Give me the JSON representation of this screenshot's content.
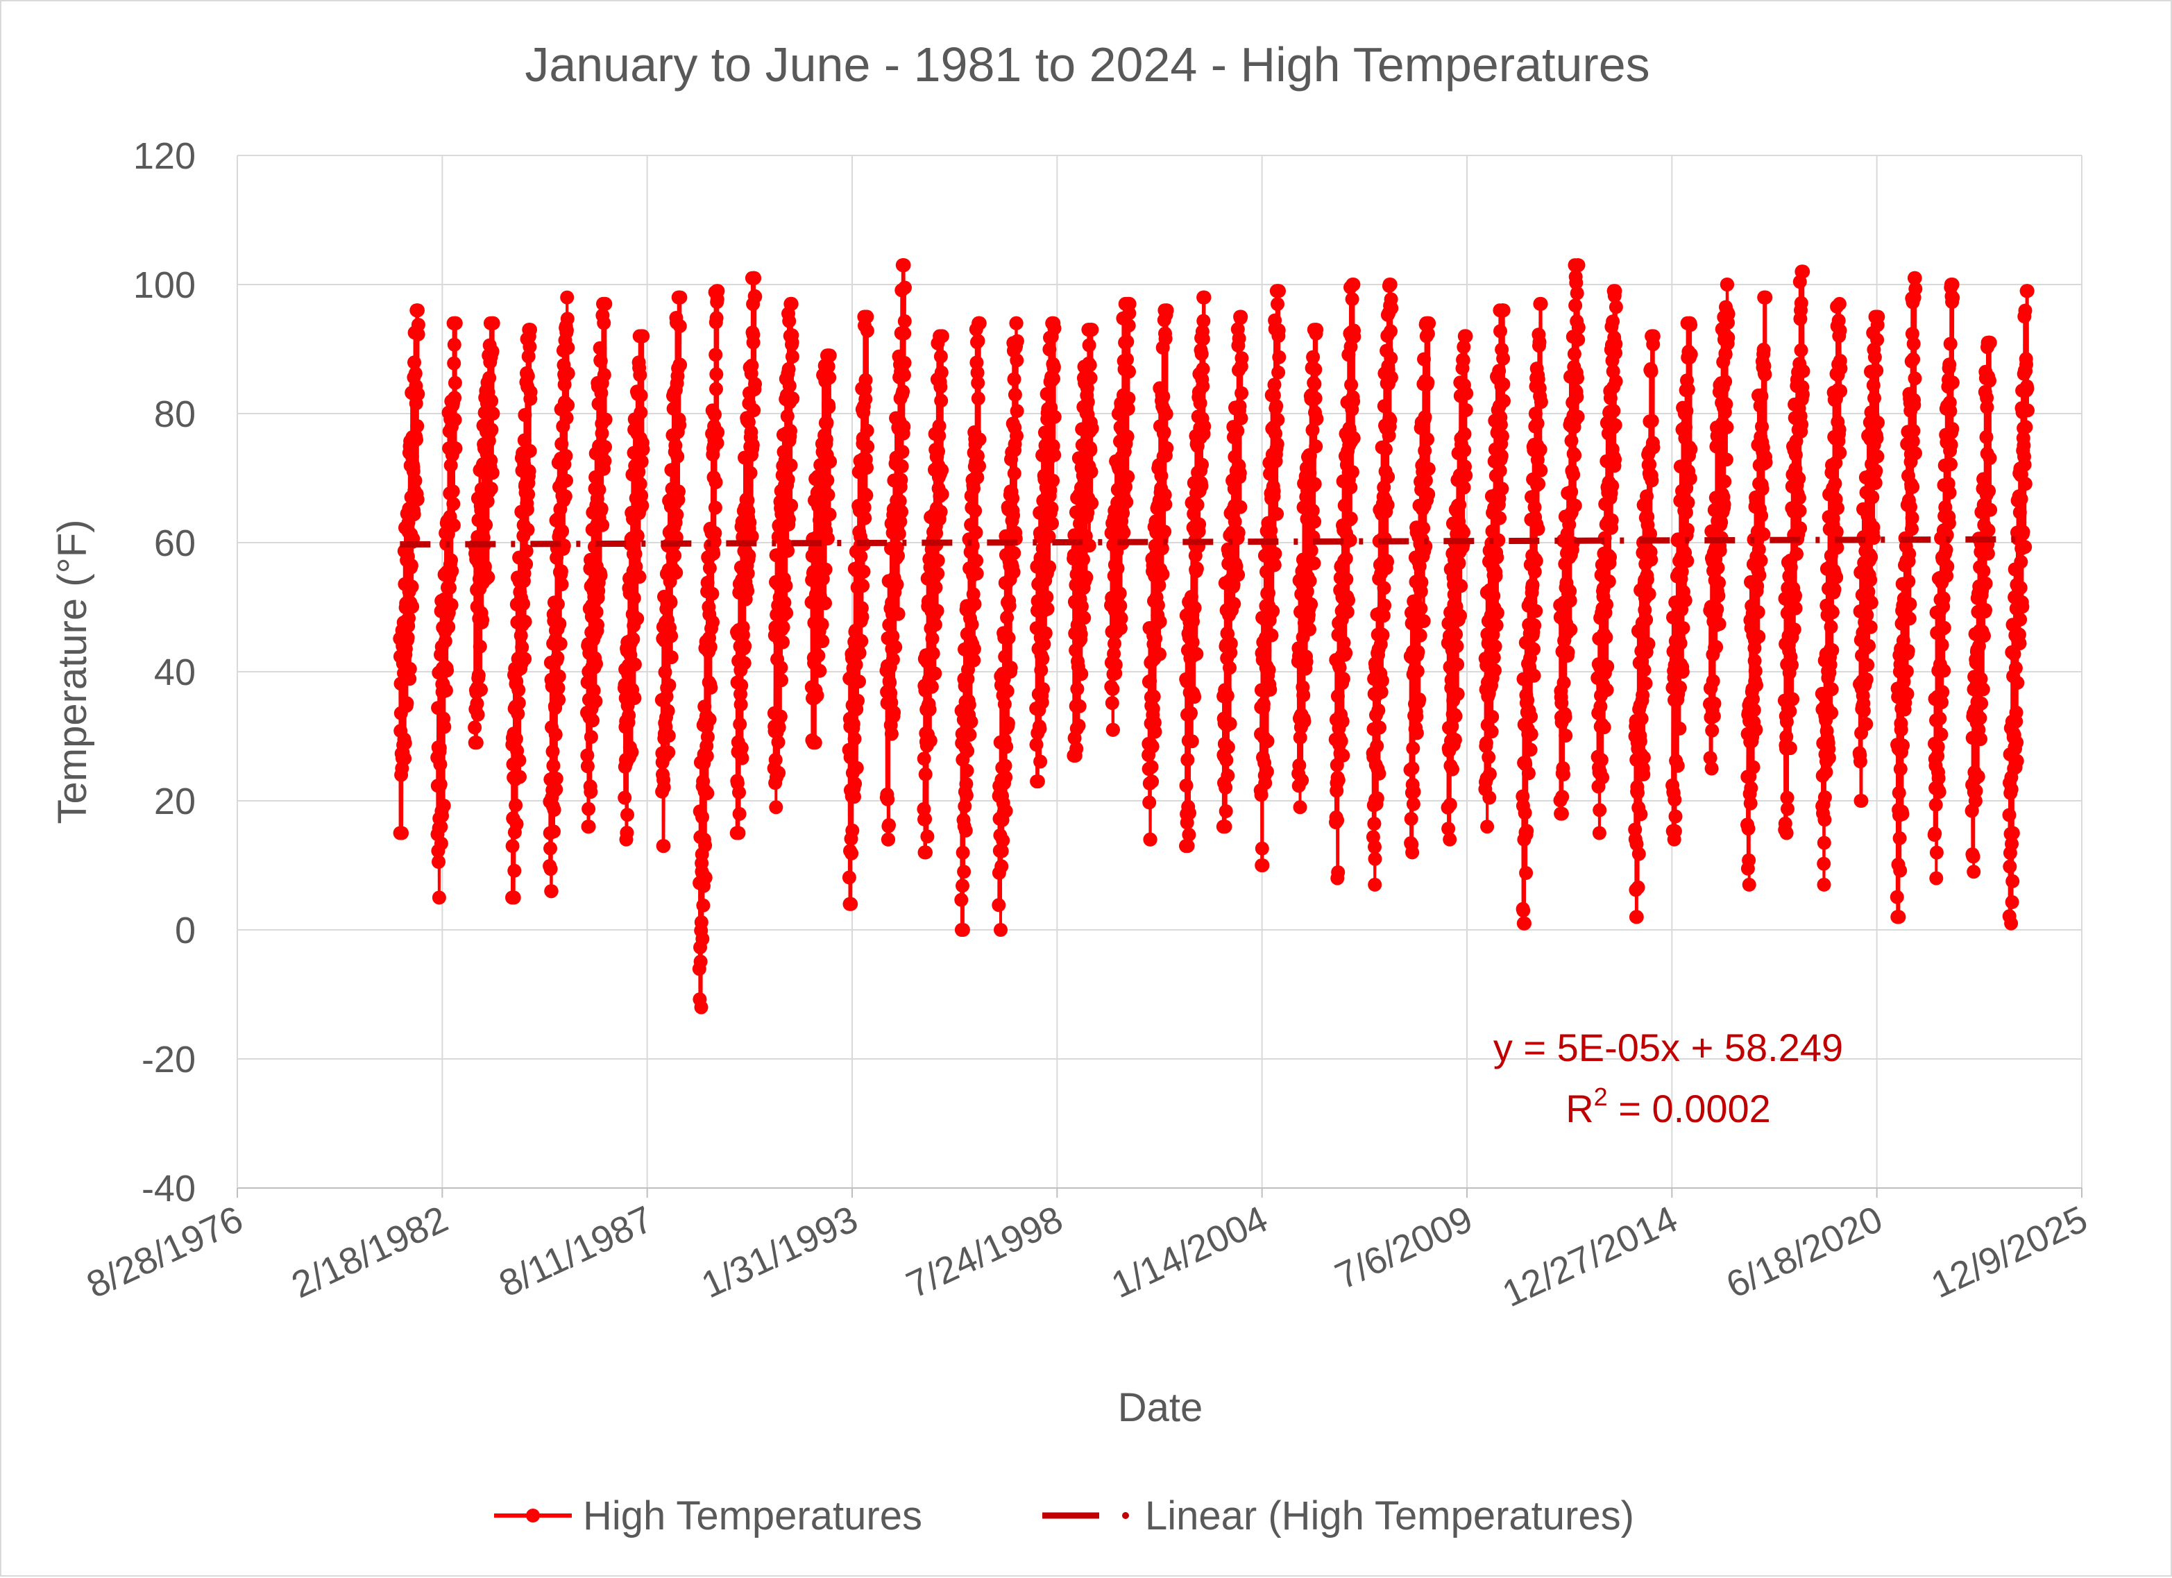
{
  "chart_data": {
    "type": "line",
    "title": "January to June - 1981 to 2024 - High Temperatures",
    "xlabel": "Date",
    "ylabel": "Temperature (°F)",
    "ylim": [
      -40,
      120
    ],
    "yticks": [
      "120",
      "100",
      "80",
      "60",
      "40",
      "20",
      "0",
      "-20",
      "-40"
    ],
    "xlim": [
      "1976-08-28",
      "2025-12-09"
    ],
    "xticks": [
      "8/28/1976",
      "2/18/1982",
      "8/11/1987",
      "1/31/1993",
      "7/24/1998",
      "1/14/2004",
      "7/6/2009",
      "12/27/2014",
      "6/18/2020",
      "12/9/2025"
    ],
    "grid": true,
    "legend_position": "bottom",
    "series": [
      {
        "name": "High Temperatures",
        "color": "#ff0000",
        "marker": "circle",
        "seasons": [
          {
            "year": 1981,
            "min": 15,
            "max": 96
          },
          {
            "year": 1982,
            "min": 5,
            "max": 94
          },
          {
            "year": 1983,
            "min": 29,
            "max": 94
          },
          {
            "year": 1984,
            "min": 5,
            "max": 93
          },
          {
            "year": 1985,
            "min": 6,
            "max": 98
          },
          {
            "year": 1986,
            "min": 16,
            "max": 97
          },
          {
            "year": 1987,
            "min": 14,
            "max": 92
          },
          {
            "year": 1988,
            "min": 13,
            "max": 98
          },
          {
            "year": 1989,
            "min": -12,
            "max": 99
          },
          {
            "year": 1990,
            "min": 15,
            "max": 101
          },
          {
            "year": 1991,
            "min": 19,
            "max": 97
          },
          {
            "year": 1992,
            "min": 29,
            "max": 89
          },
          {
            "year": 1993,
            "min": 4,
            "max": 95
          },
          {
            "year": 1994,
            "min": 14,
            "max": 103
          },
          {
            "year": 1995,
            "min": 12,
            "max": 92
          },
          {
            "year": 1996,
            "min": 0,
            "max": 94
          },
          {
            "year": 1997,
            "min": 0,
            "max": 94
          },
          {
            "year": 1998,
            "min": 23,
            "max": 94
          },
          {
            "year": 1999,
            "min": 27,
            "max": 93
          },
          {
            "year": 2000,
            "min": 31,
            "max": 97
          },
          {
            "year": 2001,
            "min": 14,
            "max": 96
          },
          {
            "year": 2002,
            "min": 13,
            "max": 98
          },
          {
            "year": 2003,
            "min": 16,
            "max": 95
          },
          {
            "year": 2004,
            "min": 10,
            "max": 99
          },
          {
            "year": 2005,
            "min": 19,
            "max": 93
          },
          {
            "year": 2006,
            "min": 8,
            "max": 100
          },
          {
            "year": 2007,
            "min": 7,
            "max": 100
          },
          {
            "year": 2008,
            "min": 12,
            "max": 94
          },
          {
            "year": 2009,
            "min": 14,
            "max": 92
          },
          {
            "year": 2010,
            "min": 16,
            "max": 96
          },
          {
            "year": 2011,
            "min": 1,
            "max": 97
          },
          {
            "year": 2012,
            "min": 18,
            "max": 103
          },
          {
            "year": 2013,
            "min": 15,
            "max": 99
          },
          {
            "year": 2014,
            "min": 2,
            "max": 92
          },
          {
            "year": 2015,
            "min": 14,
            "max": 94
          },
          {
            "year": 2016,
            "min": 25,
            "max": 100
          },
          {
            "year": 2017,
            "min": 7,
            "max": 98
          },
          {
            "year": 2018,
            "min": 15,
            "max": 102
          },
          {
            "year": 2019,
            "min": 7,
            "max": 97
          },
          {
            "year": 2020,
            "min": 20,
            "max": 95
          },
          {
            "year": 2021,
            "min": 2,
            "max": 101
          },
          {
            "year": 2022,
            "min": 8,
            "max": 100
          },
          {
            "year": 2023,
            "min": 9,
            "max": 91
          },
          {
            "year": 2024,
            "min": 1,
            "max": 99
          }
        ]
      },
      {
        "name": "Linear (High Temperatures)",
        "color": "#c00000",
        "style": "dash-dot",
        "slope": 5e-05,
        "intercept": 58.249
      }
    ],
    "trendline_equation": "y = 5E-05x + 58.249",
    "r_squared_prefix": "R",
    "r_squared_sup": "2",
    "r_squared_value": " = 0.0002",
    "legend": [
      "High Temperatures",
      "Linear (High Temperatures)"
    ]
  }
}
